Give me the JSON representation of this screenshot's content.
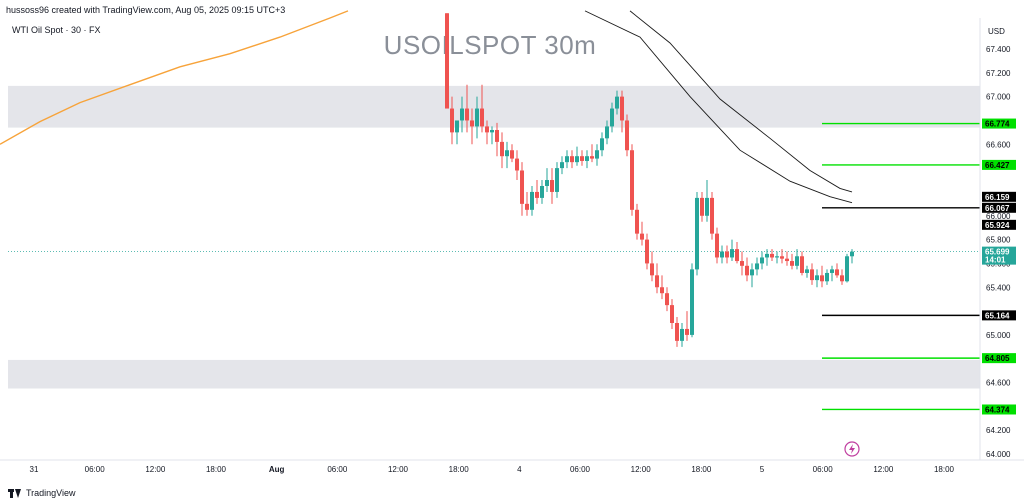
{
  "header": {
    "attribution": "hussoss96 created with TradingView.com, Aug 05, 2025 09:15 UTC+3",
    "symbol": "WTI Oil Spot · 30 · FX",
    "watermark": "USOILSPOT 30m"
  },
  "footer": {
    "brand": "TradingView"
  },
  "colors": {
    "bull": "#26a69a",
    "bear": "#ef5350",
    "zone": "#e4e5ea",
    "green_line": "#00e000",
    "black_line": "#000000",
    "orange_line": "#f7a33a",
    "current_price": "#26a69a"
  },
  "chart_data": {
    "type": "candlestick",
    "currency_label": "USD",
    "ylim": [
      63.95,
      67.66
    ],
    "y_ticks": [
      {
        "value": 67.4,
        "label": "67.400"
      },
      {
        "value": 67.2,
        "label": "67.200"
      },
      {
        "value": 67.0,
        "label": "67.000"
      },
      {
        "value": 66.6,
        "label": "66.600"
      },
      {
        "value": 66.0,
        "label": "66.000"
      },
      {
        "value": 65.8,
        "label": "65.800"
      },
      {
        "value": 65.6,
        "label": "65.600"
      },
      {
        "value": 65.4,
        "label": "65.400"
      },
      {
        "value": 65.0,
        "label": "65.000"
      },
      {
        "value": 64.6,
        "label": "64.600"
      },
      {
        "value": 64.2,
        "label": "64.200"
      },
      {
        "value": 64.0,
        "label": "64.000"
      }
    ],
    "x_ticks": [
      "31",
      "06:00",
      "12:00",
      "18:00",
      "Aug",
      "06:00",
      "12:00",
      "18:00",
      "4",
      "06:00",
      "12:00",
      "18:00",
      "5",
      "06:00",
      "12:00",
      "18:00"
    ],
    "zones": [
      {
        "from": 66.74,
        "to": 67.09
      },
      {
        "from": 64.55,
        "to": 64.79
      }
    ],
    "levels": [
      {
        "value": 66.774,
        "label": "66.774",
        "style": "green"
      },
      {
        "value": 66.427,
        "label": "66.427",
        "style": "green"
      },
      {
        "value": 66.067,
        "label": "66.067",
        "style": "black"
      },
      {
        "value": 65.164,
        "label": "65.164",
        "style": "black"
      },
      {
        "value": 64.805,
        "label": "64.805",
        "style": "green"
      },
      {
        "value": 64.374,
        "label": "64.374",
        "style": "green"
      }
    ],
    "other_tags": [
      {
        "value": 66.159,
        "label": "66.159"
      },
      {
        "value": 65.924,
        "label": "65.924"
      }
    ],
    "current_price": {
      "value": 65.699,
      "label": "65.699",
      "countdown": "14:01"
    },
    "orange_ma": [
      [
        0,
        66.6
      ],
      [
        40,
        66.79
      ],
      [
        80,
        66.95
      ],
      [
        130,
        67.1
      ],
      [
        180,
        67.25
      ],
      [
        230,
        67.36
      ],
      [
        280,
        67.5
      ],
      [
        330,
        67.66
      ],
      [
        348,
        67.72
      ]
    ],
    "channel_upper": [
      [
        585,
        67.72
      ],
      [
        640,
        67.5
      ],
      [
        690,
        67.0
      ],
      [
        740,
        66.55
      ],
      [
        790,
        66.29
      ],
      [
        830,
        66.16
      ],
      [
        852,
        66.11
      ]
    ],
    "channel_lower": [
      [
        630,
        67.72
      ],
      [
        670,
        67.45
      ],
      [
        720,
        66.98
      ],
      [
        770,
        66.65
      ],
      [
        810,
        66.38
      ],
      [
        840,
        66.23
      ],
      [
        852,
        66.2
      ]
    ],
    "candles": [
      [
        447,
        67.7,
        67.7,
        66.9,
        66.9
      ],
      [
        452,
        66.9,
        67.0,
        66.6,
        66.7
      ],
      [
        457,
        66.7,
        66.8,
        66.6,
        66.8
      ],
      [
        462,
        66.8,
        67.0,
        66.7,
        66.9
      ],
      [
        467,
        66.9,
        67.1,
        66.7,
        66.8
      ],
      [
        472,
        66.8,
        66.9,
        66.6,
        66.75
      ],
      [
        477,
        66.75,
        67.0,
        66.65,
        66.9
      ],
      [
        482,
        66.9,
        67.1,
        66.7,
        66.75
      ],
      [
        487,
        66.75,
        66.8,
        66.6,
        66.7
      ],
      [
        492,
        66.7,
        66.75,
        66.6,
        66.72
      ],
      [
        497,
        66.72,
        66.78,
        66.5,
        66.62
      ],
      [
        502,
        66.62,
        66.7,
        66.4,
        66.5
      ],
      [
        507,
        66.5,
        66.62,
        66.4,
        66.55
      ],
      [
        512,
        66.55,
        66.6,
        66.45,
        66.48
      ],
      [
        517,
        66.48,
        66.55,
        66.3,
        66.38
      ],
      [
        522,
        66.38,
        66.45,
        66.0,
        66.1
      ],
      [
        527,
        66.1,
        66.2,
        66.0,
        66.05
      ],
      [
        532,
        66.05,
        66.25,
        66.0,
        66.2
      ],
      [
        537,
        66.2,
        66.3,
        66.1,
        66.15
      ],
      [
        542,
        66.15,
        66.3,
        66.1,
        66.25
      ],
      [
        547,
        66.25,
        66.4,
        66.2,
        66.3
      ],
      [
        552,
        66.3,
        66.4,
        66.1,
        66.2
      ],
      [
        557,
        66.2,
        66.45,
        66.15,
        66.4
      ],
      [
        562,
        66.4,
        66.5,
        66.35,
        66.45
      ],
      [
        567,
        66.45,
        66.55,
        66.4,
        66.5
      ],
      [
        572,
        66.5,
        66.55,
        66.4,
        66.45
      ],
      [
        577,
        66.45,
        66.58,
        66.42,
        66.5
      ],
      [
        582,
        66.5,
        66.55,
        66.42,
        66.46
      ],
      [
        587,
        66.46,
        66.55,
        66.4,
        66.5
      ],
      [
        592,
        66.5,
        66.6,
        66.45,
        66.48
      ],
      [
        597,
        66.48,
        66.6,
        66.42,
        66.55
      ],
      [
        602,
        66.55,
        66.7,
        66.5,
        66.65
      ],
      [
        607,
        66.65,
        66.8,
        66.6,
        66.75
      ],
      [
        612,
        66.75,
        66.95,
        66.7,
        66.9
      ],
      [
        617,
        66.9,
        67.05,
        66.85,
        67.0
      ],
      [
        622,
        67.0,
        67.05,
        66.7,
        66.8
      ],
      [
        627,
        66.8,
        66.85,
        66.5,
        66.55
      ],
      [
        632,
        66.55,
        66.6,
        66.0,
        66.05
      ],
      [
        637,
        66.05,
        66.1,
        65.8,
        65.85
      ],
      [
        642,
        65.85,
        65.95,
        65.75,
        65.8
      ],
      [
        647,
        65.8,
        65.85,
        65.55,
        65.6
      ],
      [
        652,
        65.6,
        65.7,
        65.45,
        65.5
      ],
      [
        657,
        65.5,
        65.6,
        65.35,
        65.4
      ],
      [
        662,
        65.4,
        65.5,
        65.3,
        65.35
      ],
      [
        667,
        65.35,
        65.4,
        65.2,
        65.25
      ],
      [
        672,
        65.25,
        65.3,
        65.05,
        65.1
      ],
      [
        677,
        65.1,
        65.15,
        64.9,
        64.95
      ],
      [
        682,
        64.95,
        65.1,
        64.9,
        65.05
      ],
      [
        687,
        65.05,
        65.2,
        64.95,
        65.0
      ],
      [
        692,
        65.0,
        65.6,
        64.98,
        65.55
      ],
      [
        697,
        65.55,
        66.2,
        65.5,
        66.15
      ],
      [
        702,
        66.15,
        66.2,
        65.95,
        66.0
      ],
      [
        707,
        66.0,
        66.3,
        65.95,
        66.15
      ],
      [
        712,
        66.15,
        66.2,
        65.8,
        65.85
      ],
      [
        717,
        65.85,
        65.9,
        65.6,
        65.65
      ],
      [
        722,
        65.65,
        65.75,
        65.6,
        65.7
      ],
      [
        727,
        65.7,
        65.75,
        65.6,
        65.65
      ],
      [
        732,
        65.65,
        65.8,
        65.62,
        65.72
      ],
      [
        737,
        65.72,
        65.78,
        65.6,
        65.62
      ],
      [
        742,
        65.62,
        65.7,
        65.5,
        65.58
      ],
      [
        747,
        65.58,
        65.65,
        65.45,
        65.5
      ],
      [
        752,
        65.5,
        65.6,
        65.4,
        65.55
      ],
      [
        757,
        65.55,
        65.65,
        65.5,
        65.6
      ],
      [
        762,
        65.6,
        65.7,
        65.55,
        65.65
      ],
      [
        767,
        65.65,
        65.72,
        65.58,
        65.68
      ],
      [
        772,
        65.68,
        65.72,
        65.62,
        65.65
      ],
      [
        777,
        65.65,
        65.7,
        65.6,
        65.66
      ],
      [
        782,
        65.66,
        65.72,
        65.6,
        65.64
      ],
      [
        787,
        65.64,
        65.7,
        65.58,
        65.62
      ],
      [
        792,
        65.62,
        65.68,
        65.55,
        65.58
      ],
      [
        797,
        65.58,
        65.72,
        65.55,
        65.66
      ],
      [
        802,
        65.66,
        65.7,
        65.5,
        65.52
      ],
      [
        807,
        65.52,
        65.58,
        65.48,
        65.55
      ],
      [
        812,
        65.55,
        65.6,
        65.42,
        65.46
      ],
      [
        817,
        65.46,
        65.55,
        65.4,
        65.5
      ],
      [
        822,
        65.5,
        65.58,
        65.4,
        65.45
      ],
      [
        827,
        65.45,
        65.55,
        65.42,
        65.52
      ],
      [
        832,
        65.52,
        65.58,
        65.45,
        65.55
      ],
      [
        837,
        65.55,
        65.6,
        65.48,
        65.5
      ],
      [
        842,
        65.5,
        65.55,
        65.42,
        65.45
      ],
      [
        847,
        65.45,
        65.68,
        65.44,
        65.66
      ],
      [
        852,
        65.66,
        65.72,
        65.6,
        65.699
      ]
    ]
  }
}
